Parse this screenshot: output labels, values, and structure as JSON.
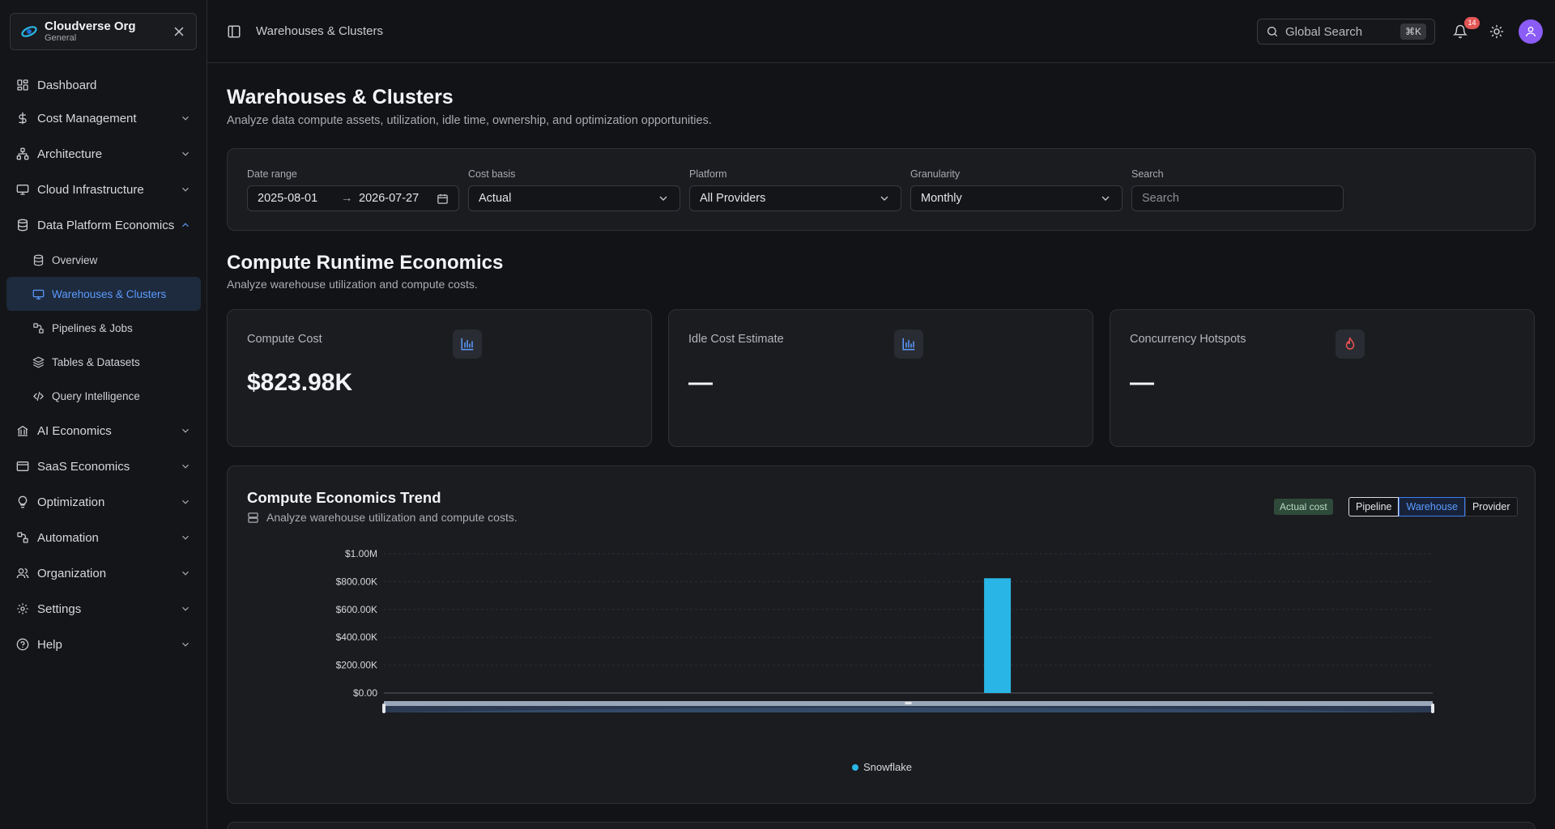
{
  "org": {
    "name": "Cloudverse Org",
    "sub": "General"
  },
  "nav": {
    "dashboard": "Dashboard",
    "cost_management": "Cost Management",
    "architecture": "Architecture",
    "cloud_infrastructure": "Cloud Infrastructure",
    "data_platform": "Data Platform Economics",
    "sub": {
      "overview": "Overview",
      "warehouses": "Warehouses & Clusters",
      "pipelines": "Pipelines & Jobs",
      "tables": "Tables & Datasets",
      "query": "Query Intelligence"
    },
    "ai": "AI Economics",
    "saas": "SaaS Economics",
    "optimization": "Optimization",
    "automation": "Automation",
    "organization": "Organization",
    "settings": "Settings",
    "help": "Help"
  },
  "topbar": {
    "breadcrumb": "Warehouses & Clusters",
    "search_placeholder": "Global Search",
    "shortcut": "⌘K",
    "notification_count": "14"
  },
  "page": {
    "title": "Warehouses & Clusters",
    "subtitle": "Analyze data compute assets, utilization, idle time, ownership, and optimization opportunities."
  },
  "filters": {
    "date_range": {
      "label": "Date range",
      "start": "2025-08-01",
      "arrow": "→",
      "end": "2026-07-27"
    },
    "cost_basis": {
      "label": "Cost basis",
      "value": "Actual"
    },
    "platform": {
      "label": "Platform",
      "value": "All Providers"
    },
    "granularity": {
      "label": "Granularity",
      "value": "Monthly"
    },
    "search": {
      "label": "Search",
      "placeholder": "Search"
    }
  },
  "section": {
    "title": "Compute Runtime Economics",
    "subtitle": "Analyze warehouse utilization and compute costs."
  },
  "kpis": {
    "compute_cost": {
      "label": "Compute Cost",
      "value": "$823.98K",
      "icon": "bar-chart-icon"
    },
    "idle_cost": {
      "label": "Idle Cost Estimate",
      "value": "—",
      "icon": "bar-chart-icon"
    },
    "concurrency": {
      "label": "Concurrency Hotspots",
      "value": "—",
      "icon": "flame-icon"
    }
  },
  "trend": {
    "title": "Compute Economics Trend",
    "subtitle": "Analyze warehouse utilization and compute costs.",
    "tag": "Actual cost",
    "segments": {
      "pipeline": "Pipeline",
      "warehouse": "Warehouse",
      "provider": "Provider"
    },
    "active_segment": "Warehouse"
  },
  "colors": {
    "accent": "#5b9cff",
    "bar": "#29b6e6",
    "avatar": "#8b5cf6",
    "badge": "#e25656"
  },
  "chart_data": {
    "type": "bar",
    "categories": [
      "",
      "",
      "",
      "",
      "",
      "",
      "",
      "",
      "",
      "",
      "",
      ""
    ],
    "series": [
      {
        "name": "Snowflake",
        "values": [
          0,
          0,
          0,
          0,
          0,
          0,
          823980,
          0,
          0,
          0,
          0,
          0
        ],
        "color": "#29b6e6"
      }
    ],
    "yticks": [
      "$0.00",
      "$200.00K",
      "$400.00K",
      "$600.00K",
      "$800.00K",
      "$1.00M"
    ],
    "ylim": [
      0,
      1000000
    ],
    "grid": true,
    "legend": "bottom-center"
  }
}
